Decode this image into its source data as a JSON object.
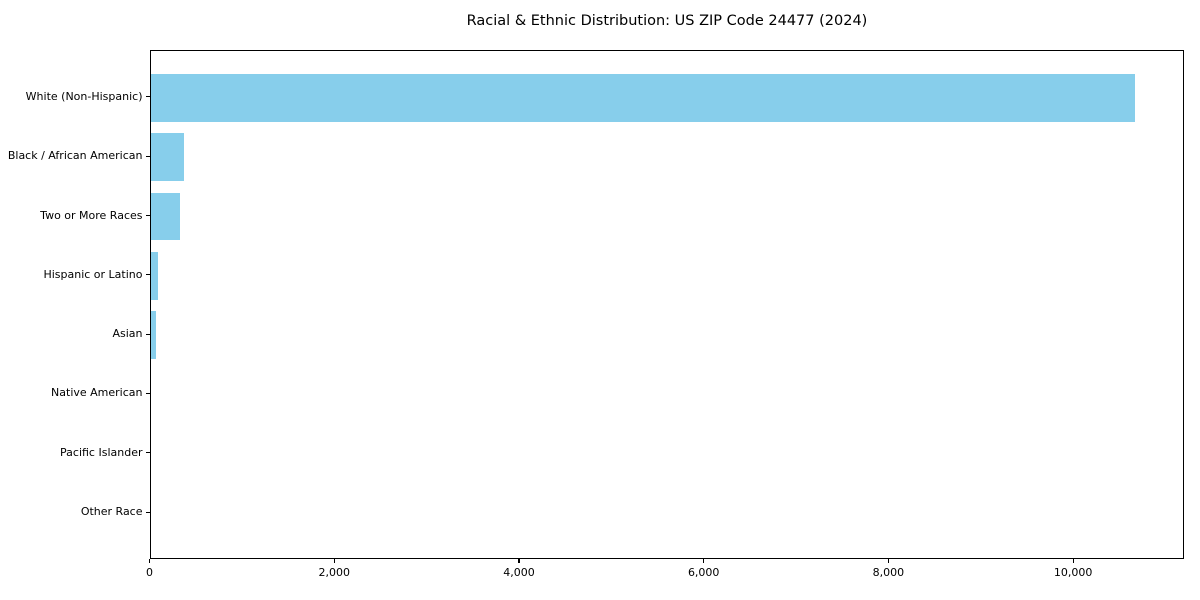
{
  "chart_data": {
    "type": "bar",
    "orientation": "horizontal",
    "title": "Racial & Ethnic Distribution: US ZIP Code 24477 (2024)",
    "categories": [
      "White (Non-Hispanic)",
      "Black / African American",
      "Two or More Races",
      "Hispanic or Latino",
      "Asian",
      "Native American",
      "Pacific Islander",
      "Other Race"
    ],
    "values": [
      10680,
      360,
      320,
      82,
      55,
      0,
      0,
      0
    ],
    "xlabel": "",
    "ylabel": "",
    "xlim": [
      0,
      11200
    ],
    "xticks": [
      0,
      2000,
      4000,
      6000,
      8000,
      10000
    ],
    "xtick_labels": [
      "0",
      "2,000",
      "4,000",
      "6,000",
      "8,000",
      "10,000"
    ],
    "bar_color": "#87CEEB",
    "axis_color": "#000000",
    "text_color": "#000000",
    "background": "#FFFFFF",
    "grid": false,
    "legend": "none"
  }
}
